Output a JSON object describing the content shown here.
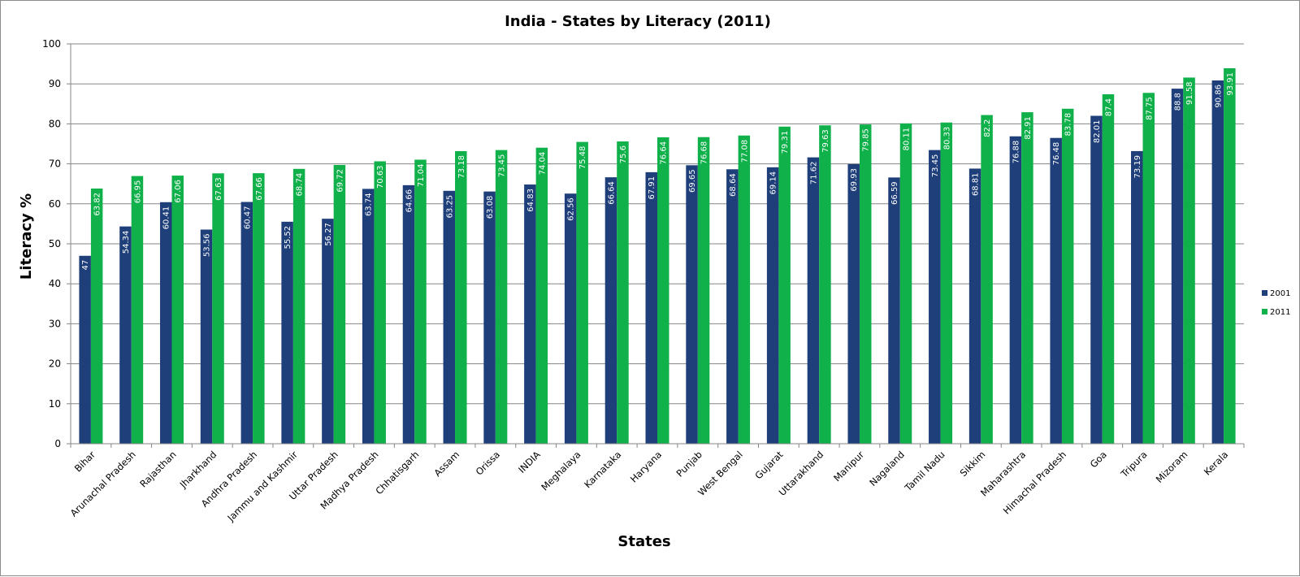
{
  "chart_data": {
    "type": "bar",
    "title": "India - States by Literacy (2011)",
    "xlabel": "States",
    "ylabel": "Literacy %",
    "ylim": [
      0,
      100
    ],
    "yticks": [
      0,
      10,
      20,
      30,
      40,
      50,
      60,
      70,
      80,
      90,
      100
    ],
    "grid": true,
    "legend_position": "right",
    "categories": [
      "Bihar",
      "Arunachal Pradesh",
      "Rajasthan",
      "Jharkhand",
      "Andhra Pradesh",
      "Jammu and Kashmir",
      "Uttar Pradesh",
      "Madhya Pradesh",
      "Chhatisgarh",
      "Assam",
      "Orissa",
      "INDIA",
      "Meghalaya",
      "Karnataka",
      "Haryana",
      "Punjab",
      "West Bengal",
      "Gujarat",
      "Uttarakhand",
      "Manipur",
      "Nagaland",
      "Tamil Nadu",
      "Sikkim",
      "Maharashtra",
      "Himachal Pradesh",
      "Goa",
      "Tripura",
      "Mizoram",
      "Kerala"
    ],
    "series": [
      {
        "name": "2001",
        "color": "#1f3f7a",
        "values": [
          47,
          54.34,
          60.41,
          53.56,
          60.47,
          55.52,
          56.27,
          63.74,
          64.66,
          63.25,
          63.08,
          64.83,
          62.56,
          66.64,
          67.91,
          69.65,
          68.64,
          69.14,
          71.62,
          69.93,
          66.59,
          73.45,
          68.81,
          76.88,
          76.48,
          82.01,
          73.19,
          88.8,
          90.86
        ]
      },
      {
        "name": "2011",
        "color": "#10b14b",
        "values": [
          63.82,
          66.95,
          67.06,
          67.63,
          67.66,
          68.74,
          69.72,
          70.63,
          71.04,
          73.18,
          73.45,
          74.04,
          75.48,
          75.6,
          76.64,
          76.68,
          77.08,
          79.31,
          79.63,
          79.85,
          80.11,
          80.33,
          82.2,
          82.91,
          83.78,
          87.4,
          87.75,
          91.58,
          93.91
        ]
      }
    ]
  }
}
